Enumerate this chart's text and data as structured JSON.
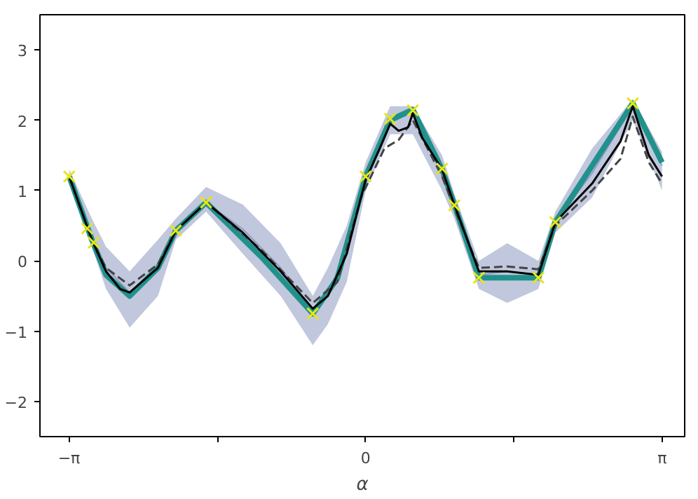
{
  "chart_data": {
    "type": "line",
    "xlabel": "α",
    "xlim": [
      -3.45,
      3.38
    ],
    "ylim": [
      -2.5,
      3.5
    ],
    "xticks": [
      {
        "value": -3.14159,
        "label": "−π"
      },
      {
        "value": -1.5708,
        "label": null
      },
      {
        "value": 0,
        "label": "0"
      },
      {
        "value": 1.5708,
        "label": null
      },
      {
        "value": 3.14159,
        "label": "π"
      }
    ],
    "yticks": [
      -2,
      -1,
      0,
      1,
      2,
      3
    ],
    "grid": false,
    "series": [
      {
        "color": "#4c5f9a",
        "x": [
          -3.14,
          -2.9,
          -2.75,
          -2.5,
          -2.2,
          -2.01,
          -1.69,
          -1.3,
          -0.9,
          -0.56,
          -0.4,
          -0.2,
          0,
          0.26,
          0.5,
          0.81,
          0.94,
          1.2,
          1.5,
          1.83,
          2.01,
          2.4,
          2.83,
          3.14
        ],
        "values": [
          1.2,
          0.35,
          -0.1,
          -0.45,
          -0.1,
          0.43,
          0.83,
          0.45,
          -0.1,
          -0.7,
          -0.45,
          0.15,
          1.2,
          2.0,
          2.1,
          1.35,
          0.8,
          -0.2,
          -0.15,
          -0.2,
          0.55,
          1.25,
          2.2,
          1.35
        ],
        "lower": [
          1.1,
          0.2,
          -0.4,
          -0.95,
          -0.5,
          0.3,
          0.7,
          0.1,
          -0.5,
          -1.2,
          -0.9,
          -0.3,
          1.0,
          1.8,
          1.8,
          1.0,
          0.6,
          -0.4,
          -0.6,
          -0.4,
          0.4,
          0.9,
          2.0,
          1.0
        ],
        "upper": [
          1.3,
          0.6,
          0.2,
          -0.15,
          0.3,
          0.6,
          1.05,
          0.8,
          0.25,
          -0.5,
          -0.1,
          0.5,
          1.4,
          2.2,
          2.2,
          1.5,
          0.95,
          0.0,
          0.25,
          0.0,
          0.7,
          1.6,
          2.3,
          1.55
        ]
      },
      {
        "color": "#21918c",
        "x": [
          -3.14,
          -2.9,
          -2.75,
          -2.5,
          -2.2,
          -2.01,
          -1.69,
          -1.1,
          -0.56,
          -0.3,
          0,
          0.26,
          0.5,
          0.81,
          0.94,
          1.2,
          1.5,
          1.83,
          2.01,
          2.83,
          3.14
        ],
        "values": [
          1.2,
          0.3,
          -0.2,
          -0.5,
          -0.1,
          0.43,
          0.83,
          0.05,
          -0.75,
          -0.25,
          1.2,
          2.0,
          2.15,
          1.3,
          0.8,
          -0.24,
          -0.24,
          -0.24,
          0.55,
          2.24,
          1.4
        ]
      },
      {
        "color": "#444444",
        "line_style": "dashed",
        "x": [
          -3.14,
          -2.9,
          -2.75,
          -2.5,
          -2.2,
          -2.01,
          -1.69,
          -1.1,
          -0.56,
          -0.3,
          -0.05,
          0.2,
          0.35,
          0.5,
          0.81,
          0.94,
          1.2,
          1.5,
          1.83,
          2.01,
          2.4,
          2.7,
          2.83,
          3.0,
          3.14
        ],
        "values": [
          1.2,
          0.3,
          -0.1,
          -0.35,
          -0.05,
          0.43,
          0.83,
          0.15,
          -0.6,
          -0.3,
          0.9,
          1.6,
          1.72,
          2.0,
          1.2,
          0.75,
          -0.1,
          -0.08,
          -0.12,
          0.5,
          1.0,
          1.45,
          2.05,
          1.4,
          1.1
        ]
      },
      {
        "color": "#000000",
        "line_style": "solid",
        "x": [
          -3.14,
          -2.9,
          -2.75,
          -2.6,
          -2.5,
          -2.2,
          -2.01,
          -1.69,
          -1.3,
          -0.9,
          -0.56,
          -0.4,
          -0.2,
          -0.05,
          0,
          0.15,
          0.26,
          0.35,
          0.45,
          0.5,
          0.6,
          0.81,
          0.94,
          1.2,
          1.5,
          1.83,
          2.01,
          2.4,
          2.7,
          2.83,
          3.0,
          3.14
        ],
        "values": [
          1.2,
          0.3,
          -0.15,
          -0.4,
          -0.45,
          -0.1,
          0.43,
          0.83,
          0.4,
          -0.15,
          -0.68,
          -0.5,
          0.1,
          0.9,
          1.15,
          1.6,
          1.95,
          1.85,
          1.9,
          2.1,
          1.75,
          1.3,
          0.8,
          -0.15,
          -0.15,
          -0.2,
          0.55,
          1.1,
          1.7,
          2.2,
          1.5,
          1.2
        ]
      },
      {
        "type": "scatter",
        "color": "#e6e619",
        "marker": "cross",
        "x": [
          -3.14,
          -2.95,
          -2.88,
          -2.01,
          -1.69,
          -0.56,
          0,
          0.26,
          0.5,
          0.81,
          0.94,
          1.2,
          1.83,
          2.01,
          2.83
        ],
        "values": [
          1.2,
          0.46,
          0.26,
          0.43,
          0.83,
          -0.75,
          1.2,
          2.02,
          2.14,
          1.31,
          0.79,
          -0.24,
          -0.24,
          0.55,
          2.24
        ]
      }
    ]
  }
}
